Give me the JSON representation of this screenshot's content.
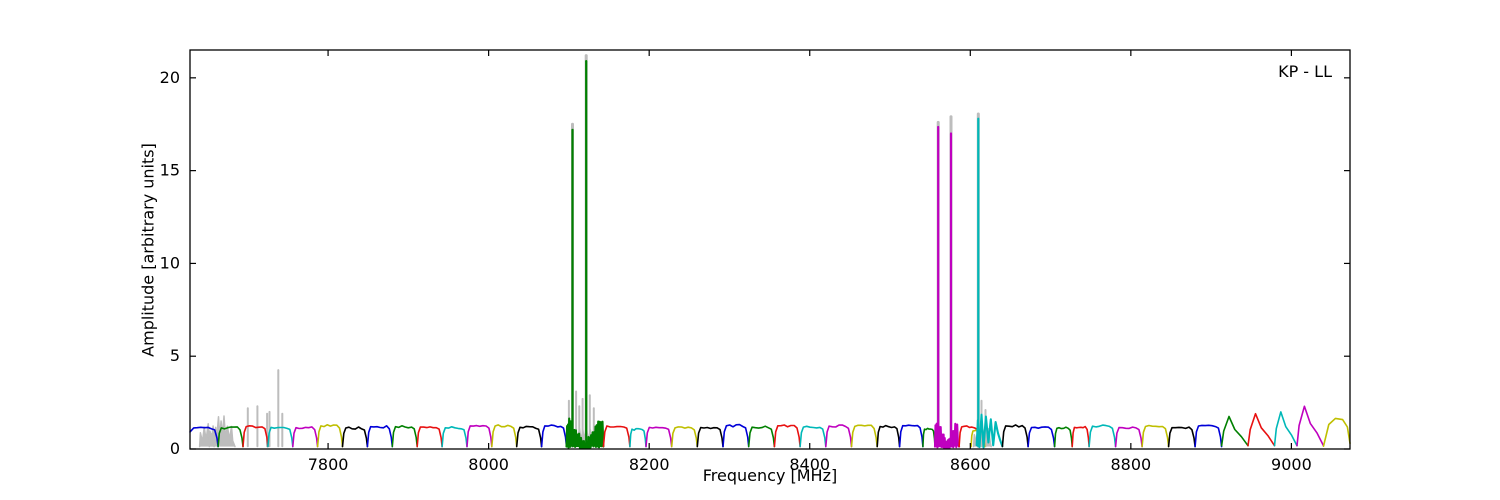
{
  "figure": {
    "corner_label": "KP - LL"
  },
  "chart_data": {
    "type": "line",
    "title": "",
    "corner_label": "KP - LL",
    "xlabel": "Frequency [MHz]",
    "ylabel": "Amplitude [arbitrary units]",
    "xlim": [
      7628,
      9073
    ],
    "ylim": [
      0,
      21.5
    ],
    "xticks": [
      7800,
      8000,
      8200,
      8400,
      8600,
      8800,
      9000
    ],
    "yticks": [
      0,
      5,
      10,
      15,
      20
    ],
    "grid": false,
    "legend": "none",
    "palette": {
      "b": "#0000d8",
      "g": "#008000",
      "r": "#e81010",
      "c": "#00b8b8",
      "m": "#bf00bf",
      "y": "#bfbf00",
      "k": "#000000",
      "gray": "#bdbdbd"
    },
    "description": "Per-IF bandpass spectra (~32 MHz windows, color cycle b,g,r,c,m,y,k) at ~1.2 amplitude with RFI spike regions; light gray = unflagged data behind colored flagged data",
    "segments": [
      {
        "f0": 7628,
        "f1": 7663,
        "c": "b",
        "s": "band",
        "edge": "left"
      },
      {
        "f0": 7663,
        "f1": 7694,
        "c": "g",
        "s": "band"
      },
      {
        "f0": 7694,
        "f1": 7725,
        "c": "r",
        "s": "band"
      },
      {
        "f0": 7725,
        "f1": 7756,
        "c": "c",
        "s": "band"
      },
      {
        "f0": 7756,
        "f1": 7787,
        "c": "m",
        "s": "band"
      },
      {
        "f0": 7787,
        "f1": 7818,
        "c": "y",
        "s": "band"
      },
      {
        "f0": 7818,
        "f1": 7849,
        "c": "k",
        "s": "band"
      },
      {
        "f0": 7849,
        "f1": 7880,
        "c": "b",
        "s": "band"
      },
      {
        "f0": 7880,
        "f1": 7911,
        "c": "g",
        "s": "band"
      },
      {
        "f0": 7911,
        "f1": 7942,
        "c": "r",
        "s": "band"
      },
      {
        "f0": 7942,
        "f1": 7973,
        "c": "c",
        "s": "band"
      },
      {
        "f0": 7973,
        "f1": 8004,
        "c": "m",
        "s": "band"
      },
      {
        "f0": 8004,
        "f1": 8035,
        "c": "y",
        "s": "band"
      },
      {
        "f0": 8035,
        "f1": 8066,
        "c": "k",
        "s": "band"
      },
      {
        "f0": 8066,
        "f1": 8097,
        "c": "b",
        "s": "band"
      },
      {
        "f0": 8097,
        "f1": 8143,
        "c": "g",
        "s": "rfi"
      },
      {
        "f0": 8143,
        "f1": 8176,
        "c": "r",
        "s": "band"
      },
      {
        "f0": 8176,
        "f1": 8196,
        "c": "c",
        "s": "band",
        "p": 1.1
      },
      {
        "f0": 8196,
        "f1": 8228,
        "c": "m",
        "s": "band"
      },
      {
        "f0": 8228,
        "f1": 8260,
        "c": "y",
        "s": "band"
      },
      {
        "f0": 8260,
        "f1": 8292,
        "c": "k",
        "s": "band"
      },
      {
        "f0": 8292,
        "f1": 8324,
        "c": "b",
        "s": "band"
      },
      {
        "f0": 8324,
        "f1": 8356,
        "c": "g",
        "s": "band"
      },
      {
        "f0": 8356,
        "f1": 8388,
        "c": "r",
        "s": "band"
      },
      {
        "f0": 8388,
        "f1": 8420,
        "c": "c",
        "s": "band"
      },
      {
        "f0": 8420,
        "f1": 8452,
        "c": "m",
        "s": "band"
      },
      {
        "f0": 8452,
        "f1": 8484,
        "c": "y",
        "s": "band"
      },
      {
        "f0": 8484,
        "f1": 8512,
        "c": "k",
        "s": "band"
      },
      {
        "f0": 8512,
        "f1": 8541,
        "c": "b",
        "s": "band"
      },
      {
        "f0": 8541,
        "f1": 8556,
        "c": "g",
        "s": "band",
        "p": 1.1
      },
      {
        "f0": 8556,
        "f1": 8586,
        "c": "m",
        "s": "rfi"
      },
      {
        "f0": 8586,
        "f1": 8611,
        "c": "r",
        "s": "band"
      },
      {
        "f0": 8601,
        "f1": 8618,
        "c": "y",
        "s": "band",
        "p": 1.0
      },
      {
        "f0": 8608,
        "f1": 8640,
        "c": "c",
        "s": "rfi2",
        "pts": [
          [
            8608,
            0.2
          ],
          [
            8609.5,
            1.55
          ],
          [
            8611.5,
            0.1
          ],
          [
            8614,
            1.85
          ],
          [
            8616.5,
            0.08
          ],
          [
            8619.5,
            1.75
          ],
          [
            8622.5,
            0.35
          ],
          [
            8625.5,
            1.6
          ],
          [
            8628.5,
            0.2
          ],
          [
            8631.5,
            1.45
          ],
          [
            8634.5,
            0.85
          ],
          [
            8637,
            0.5
          ],
          [
            8640,
            0.15
          ]
        ]
      },
      {
        "f0": 8640,
        "f1": 8672,
        "c": "k",
        "s": "band"
      },
      {
        "f0": 8672,
        "f1": 8705,
        "c": "b",
        "s": "band"
      },
      {
        "f0": 8705,
        "f1": 8727,
        "c": "g",
        "s": "band",
        "p": 1.15
      },
      {
        "f0": 8727,
        "f1": 8748,
        "c": "r",
        "s": "band",
        "p": 1.2
      },
      {
        "f0": 8748,
        "f1": 8781,
        "c": "c",
        "s": "band"
      },
      {
        "f0": 8781,
        "f1": 8814,
        "c": "m",
        "s": "band"
      },
      {
        "f0": 8814,
        "f1": 8847,
        "c": "y",
        "s": "band"
      },
      {
        "f0": 8847,
        "f1": 8880,
        "c": "k",
        "s": "band"
      },
      {
        "f0": 8880,
        "f1": 8913,
        "c": "b",
        "s": "band"
      },
      {
        "f0": 8913,
        "f1": 8946,
        "c": "g",
        "s": "saw",
        "p": 1.75
      },
      {
        "f0": 8946,
        "f1": 8979,
        "c": "r",
        "s": "saw",
        "p": 1.9
      },
      {
        "f0": 8979,
        "f1": 9007,
        "c": "c",
        "s": "saw",
        "p": 2.0
      },
      {
        "f0": 9007,
        "f1": 9040,
        "c": "m",
        "s": "saw",
        "p": 2.3
      },
      {
        "f0": 9040,
        "f1": 9073,
        "c": "y",
        "s": "dome",
        "p": 1.65,
        "edge": "right"
      }
    ],
    "color_spikes": [
      {
        "f": 8104.5,
        "h": 17.2,
        "c": "g"
      },
      {
        "f": 8121.5,
        "h": 20.9,
        "c": "g"
      },
      {
        "f": 8560,
        "h": 17.35,
        "c": "m"
      },
      {
        "f": 8576,
        "h": 17.0,
        "c": "m"
      },
      {
        "f": 8610,
        "h": 17.8,
        "c": "c"
      }
    ],
    "gray_spikes": [
      {
        "f": 7700,
        "h": 2.2
      },
      {
        "f": 7712,
        "h": 2.3
      },
      {
        "f": 7724,
        "h": 1.9
      },
      {
        "f": 7727,
        "h": 2.0
      },
      {
        "f": 7738,
        "h": 4.25
      },
      {
        "f": 7743,
        "h": 1.9
      },
      {
        "f": 8100,
        "h": 2.6
      },
      {
        "f": 8104.5,
        "h": 17.5
      },
      {
        "f": 8109,
        "h": 3.1
      },
      {
        "f": 8113,
        "h": 2.3
      },
      {
        "f": 8117,
        "h": 2.7
      },
      {
        "f": 8121.5,
        "h": 21.2
      },
      {
        "f": 8126,
        "h": 2.9
      },
      {
        "f": 8131,
        "h": 2.2
      },
      {
        "f": 8560,
        "h": 17.6
      },
      {
        "f": 8576,
        "h": 17.9
      },
      {
        "f": 8610,
        "h": 18.05
      },
      {
        "f": 8614,
        "h": 2.6
      },
      {
        "f": 8619,
        "h": 2.1
      }
    ],
    "gray_humps": [
      {
        "f0": 7640,
        "f1": 7658,
        "h": 1.5
      },
      {
        "f0": 7652,
        "f1": 7684,
        "h": 2.0
      },
      {
        "f0": 8098,
        "f1": 8140,
        "h": 1.4
      },
      {
        "f0": 8604,
        "f1": 8626,
        "h": 1.7
      }
    ]
  }
}
